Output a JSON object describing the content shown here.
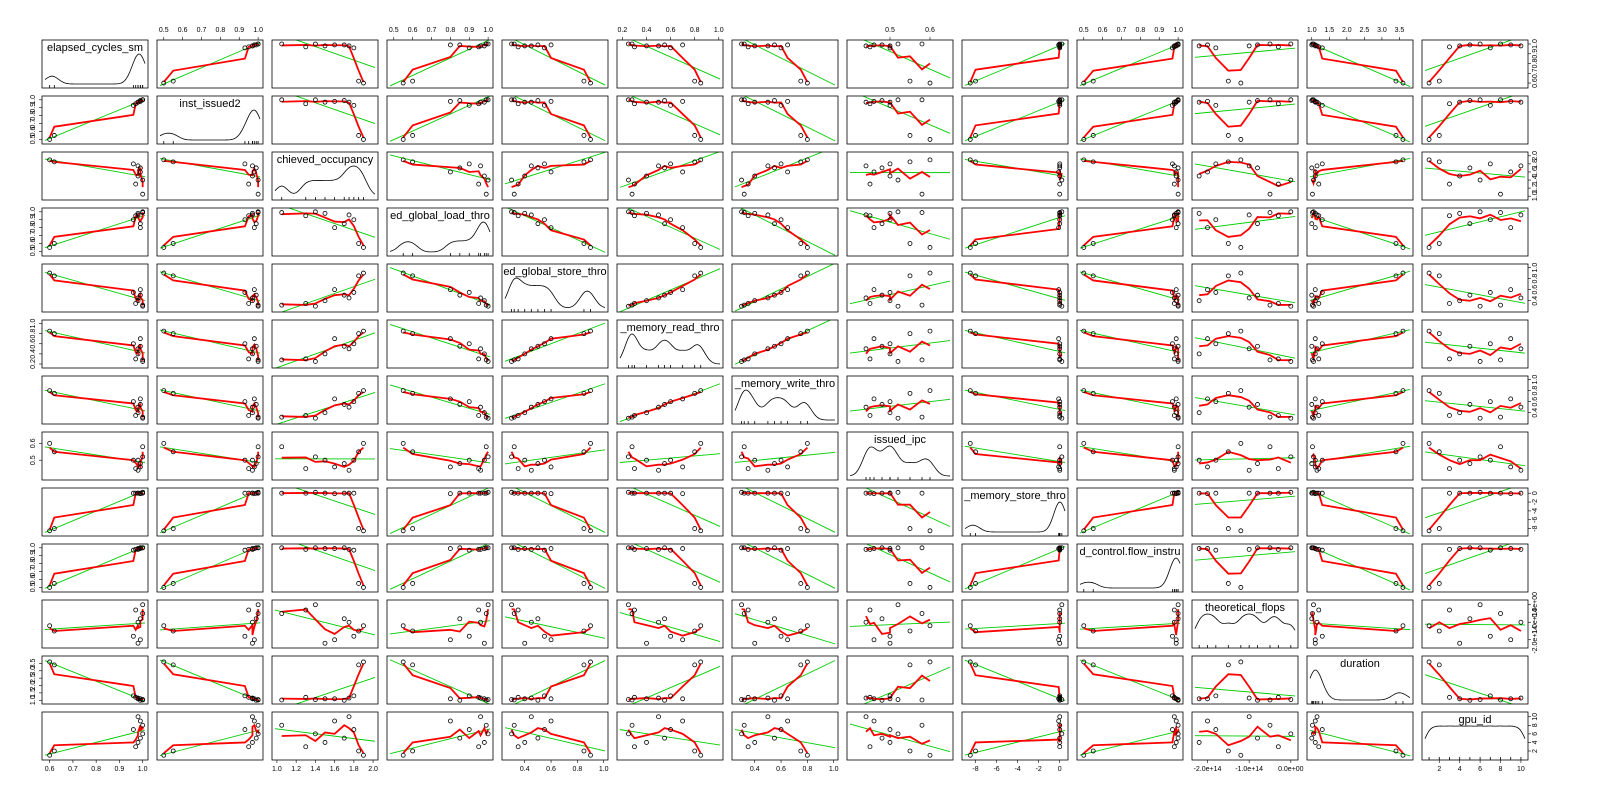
{
  "chart_data": {
    "type": "scatter_matrix",
    "point_color": "#000000",
    "fit_color": "#00cc00",
    "smooth_color": "#ff0000",
    "density_color": "#000000",
    "variables": [
      {
        "label": "elapsed_cycles_sm",
        "lim": [
          0.58,
          1.01
        ],
        "ticks": [
          0.6,
          0.7,
          0.8,
          0.9,
          {
            "value": 1,
            "label": "1.0"
          }
        ],
        "values": [
          0.6,
          0.62,
          0.97,
          0.98,
          0.99,
          1,
          0.96,
          1,
          0.99,
          0.98
        ]
      },
      {
        "label": "inst_issued2",
        "lim": [
          0.48,
          1.01
        ],
        "ticks": [
          0.5,
          0.6,
          0.7,
          0.8,
          0.9,
          {
            "value": 1,
            "label": "1.0"
          }
        ],
        "values": [
          0.5,
          0.55,
          0.95,
          0.97,
          0.99,
          1,
          0.93,
          1,
          0.98,
          0.97
        ]
      },
      {
        "label": "chieved_occupancy",
        "lim": [
          0.98,
          2.02
        ],
        "ticks": [
          {
            "value": 1,
            "label": "1.0"
          },
          1.2,
          1.4,
          1.6,
          1.8,
          {
            "value": 2,
            "label": "2.0"
          }
        ],
        "values": [
          1.9,
          1.85,
          1.3,
          1.5,
          1.7,
          1.4,
          1.8,
          1.05,
          1.6,
          1.75
        ]
      },
      {
        "label": "ed_global_load_thro",
        "lim": [
          0.48,
          1.01
        ],
        "ticks": [
          0.5,
          0.6,
          0.7,
          0.8,
          0.9,
          {
            "value": 1,
            "label": "1.0"
          }
        ],
        "values": [
          0.55,
          0.6,
          0.95,
          0.98,
          0.85,
          1,
          0.9,
          0.99,
          0.8,
          0.96
        ]
      },
      {
        "label": "ed_global_store_thro",
        "lim": [
          0.25,
          1.01
        ],
        "ticks": [
          0.4,
          0.6,
          0.8,
          {
            "value": 1,
            "label": "1.0"
          }
        ],
        "values": [
          0.9,
          0.85,
          0.35,
          0.4,
          0.5,
          0.3,
          0.55,
          0.32,
          0.6,
          0.45
        ]
      },
      {
        "label": "_memory_read_thro",
        "lim": [
          0.18,
          1.01
        ],
        "ticks": [
          0.2,
          0.4,
          0.6,
          0.8,
          {
            "value": 1,
            "label": "1.0"
          }
        ],
        "values": [
          0.85,
          0.8,
          0.3,
          0.4,
          0.55,
          0.25,
          0.6,
          0.28,
          0.7,
          0.5
        ]
      },
      {
        "label": "_memory_write_thro",
        "lim": [
          0.25,
          1.01
        ],
        "ticks": [
          0.4,
          0.6,
          0.8,
          {
            "value": 1,
            "label": "1.0"
          }
        ],
        "values": [
          0.8,
          0.75,
          0.35,
          0.4,
          0.55,
          0.3,
          0.6,
          0.32,
          0.65,
          0.5
        ]
      },
      {
        "label": "issued_ipc",
        "lim": [
          0.4,
          0.65
        ],
        "ticks": [
          0.5,
          0.6
        ],
        "values": [
          0.6,
          0.55,
          0.45,
          0.5,
          0.48,
          0.52,
          0.5,
          0.58,
          0.46,
          0.44
        ]
      },
      {
        "label": "_memory_store_thro",
        "lim": [
          -9,
          0.5
        ],
        "ticks": [
          -8,
          -6,
          -4,
          -2,
          0
        ],
        "values": [
          -8.5,
          -8,
          0,
          0,
          0,
          0.2,
          0,
          0,
          -0.1,
          0
        ]
      },
      {
        "label": "d_control.flow_instru",
        "lim": [
          0.48,
          1.01
        ],
        "ticks": [
          0.5,
          0.6,
          0.7,
          0.8,
          0.9,
          {
            "value": 1,
            "label": "1.0"
          }
        ],
        "values": [
          0.5,
          0.55,
          0.98,
          0.99,
          1,
          1,
          0.97,
          1,
          0.99,
          0.98
        ]
      },
      {
        "label": "theoretical_flops",
        "lim": [
          -230000000000000,
          10000000000000
        ],
        "ticks": [
          {
            "value": -200000000000000,
            "label": "-2.0e+14"
          },
          {
            "value": -100000000000000,
            "label": "-1.0e+14"
          },
          {
            "value": 0,
            "label": "0.0e+00"
          }
        ],
        "values": [
          -120000000000000,
          -150000000000000,
          -30000000000000,
          -220000000000000,
          -80000000000000,
          0,
          -180000000000000,
          -50000000000000,
          -200000000000000,
          -100000000000000
        ]
      },
      {
        "label": "duration",
        "lim": [
          0.95,
          3.8
        ],
        "ticks": [
          {
            "value": 1,
            "label": "1.0"
          },
          1.5,
          {
            "value": 2,
            "label": "2.0"
          },
          2.5,
          {
            "value": 3,
            "label": "3.0"
          },
          3.5
        ],
        "values": [
          3.6,
          3.4,
          1.2,
          1.1,
          1,
          1.05,
          1.3,
          1.02,
          1.1,
          1.15
        ]
      },
      {
        "label": "gpu_id",
        "lim": [
          0.6,
          10.4
        ],
        "ticks": [
          2,
          4,
          6,
          8,
          10
        ],
        "values": [
          1,
          2,
          3,
          4,
          5,
          6,
          7,
          8,
          9,
          10
        ]
      }
    ]
  }
}
